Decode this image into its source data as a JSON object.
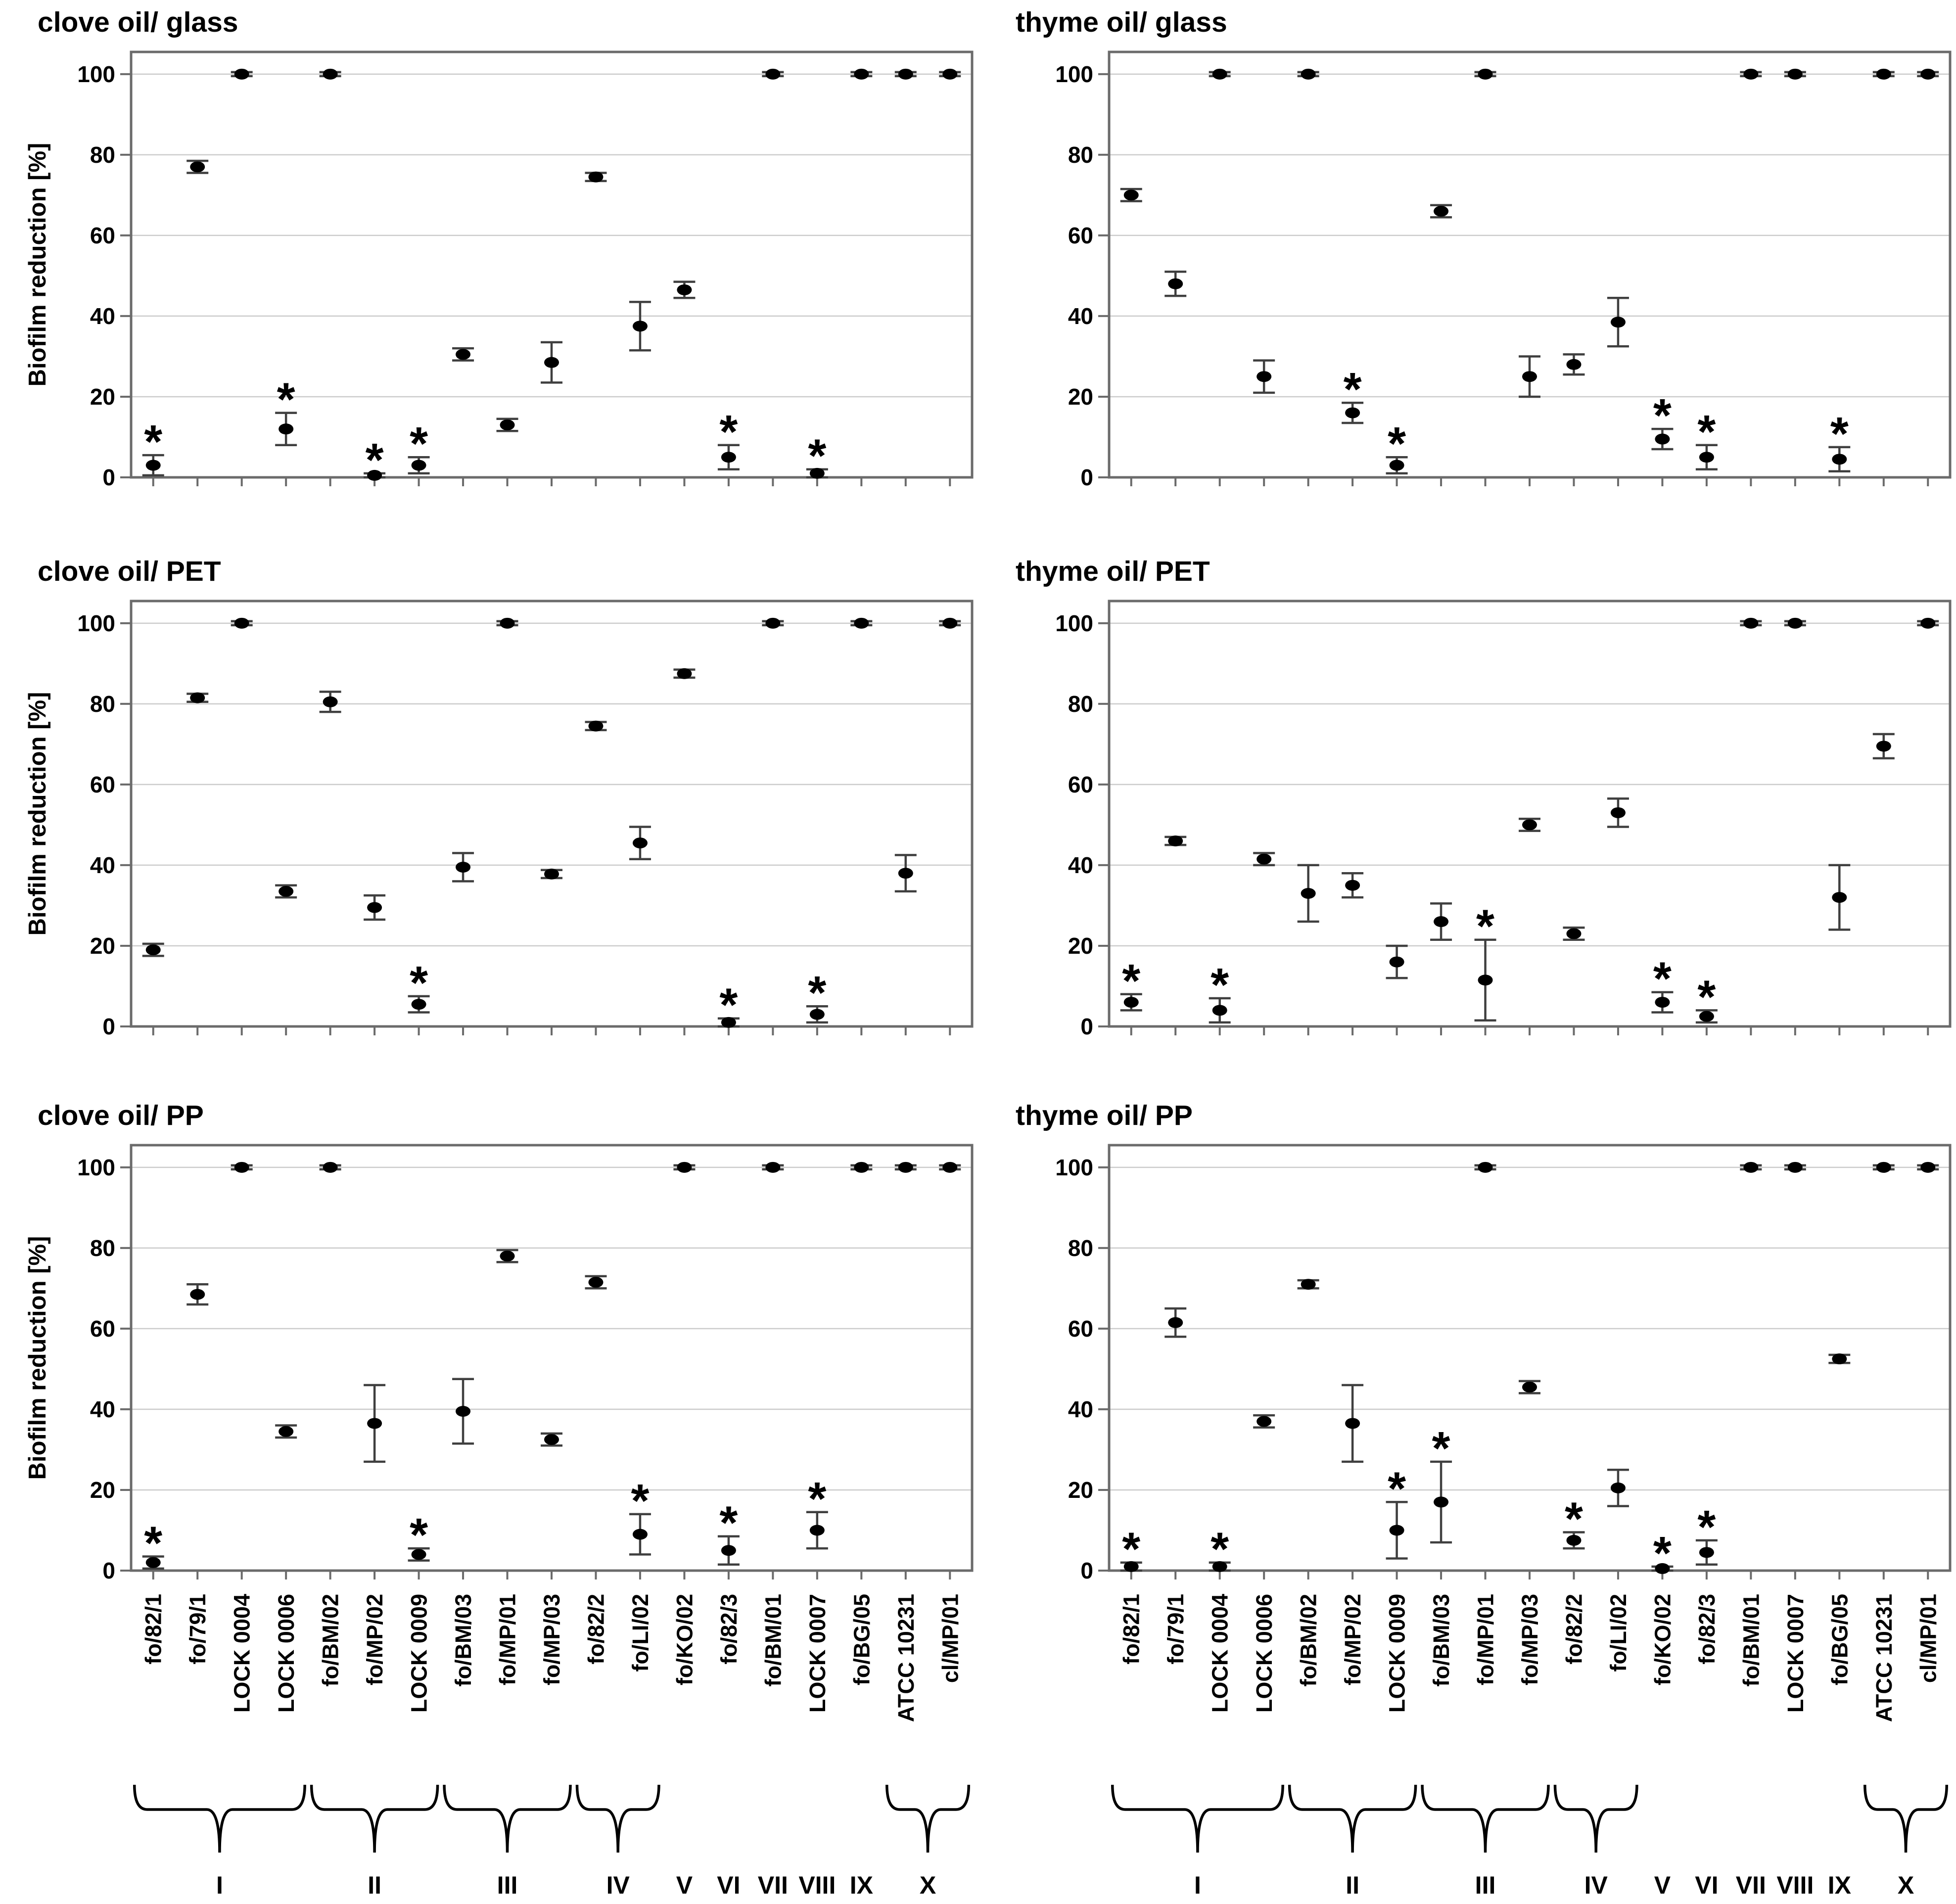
{
  "figure": {
    "description_text_visible": false,
    "panel_grid": {
      "rows": 3,
      "cols": 2
    },
    "colors": {
      "background": "#ffffff",
      "marker": "#000000",
      "error_bar": "#3f3f3f",
      "gridline": "#cccccc",
      "axis_border": "#6b6b6b",
      "text": "#000000"
    }
  },
  "groups": [
    {
      "label": "I",
      "from": 0,
      "to": 3
    },
    {
      "label": "II",
      "from": 4,
      "to": 6
    },
    {
      "label": "III",
      "from": 7,
      "to": 9
    },
    {
      "label": "IV",
      "from": 10,
      "to": 11
    },
    {
      "label": "V",
      "from": 12,
      "to": 12
    },
    {
      "label": "VI",
      "from": 13,
      "to": 13
    },
    {
      "label": "VII",
      "from": 14,
      "to": 14
    },
    {
      "label": "VIII",
      "from": 15,
      "to": 15
    },
    {
      "label": "IX",
      "from": 16,
      "to": 16
    },
    {
      "label": "X",
      "from": 17,
      "to": 18
    }
  ],
  "chart_data": [
    {
      "type": "scatter",
      "title": "clove oil/ glass",
      "ylabel": "Biofilm reduction [%]",
      "ylim": [
        0,
        100
      ],
      "yticks": [
        0,
        20,
        40,
        60,
        80,
        100
      ],
      "grid": true,
      "error_bars": true,
      "significance_marker": "*",
      "categories": [
        "fo/82/1",
        "fo/79/1",
        "LOCK 0004",
        "LOCK 0006",
        "fo/BM/02",
        "fo/MP/02",
        "LOCK 0009",
        "fo/BM/03",
        "fo/MP/01",
        "fo/MP/03",
        "fo/82/2",
        "fo/LI/02",
        "fo/KO/02",
        "fo/82/3",
        "fo/BM/01",
        "LOCK 0007",
        "fo/BG/05",
        "ATCC 10231",
        "cl/MP/01"
      ],
      "values": [
        3,
        77,
        100,
        12,
        100,
        0.5,
        3,
        30.5,
        13,
        28.5,
        74.5,
        37.5,
        46.5,
        5,
        100,
        1,
        100,
        100,
        100
      ],
      "errors": [
        2.5,
        1.5,
        0.5,
        4,
        0.5,
        0.5,
        2,
        1.5,
        1.5,
        5,
        1,
        6,
        2,
        3,
        0.5,
        1,
        0.5,
        0.5,
        0.5
      ],
      "significant": [
        true,
        false,
        false,
        true,
        false,
        true,
        true,
        false,
        false,
        false,
        false,
        false,
        false,
        true,
        false,
        true,
        false,
        false,
        false
      ]
    },
    {
      "type": "scatter",
      "title": "thyme oil/ glass",
      "ylabel": "",
      "ylim": [
        0,
        100
      ],
      "yticks": [
        0,
        20,
        40,
        60,
        80,
        100
      ],
      "grid": true,
      "error_bars": true,
      "significance_marker": "*",
      "categories": [
        "fo/82/1",
        "fo/79/1",
        "LOCK 0004",
        "LOCK 0006",
        "fo/BM/02",
        "fo/MP/02",
        "LOCK 0009",
        "fo/BM/03",
        "fo/MP/01",
        "fo/MP/03",
        "fo/82/2",
        "fo/LI/02",
        "fo/KO/02",
        "fo/82/3",
        "fo/BM/01",
        "LOCK 0007",
        "fo/BG/05",
        "ATCC 10231",
        "cl/MP/01"
      ],
      "values": [
        70,
        48,
        100,
        25,
        100,
        16,
        3,
        66,
        100,
        25,
        28,
        38.5,
        9.5,
        5,
        100,
        100,
        4.5,
        100,
        100
      ],
      "errors": [
        1.5,
        3,
        0.5,
        4,
        0.5,
        2.5,
        2,
        1.5,
        0.5,
        5,
        2.5,
        6,
        2.5,
        3,
        0.5,
        0.5,
        3,
        0.5,
        0.5
      ],
      "significant": [
        false,
        false,
        false,
        false,
        false,
        true,
        true,
        false,
        false,
        false,
        false,
        false,
        true,
        true,
        false,
        false,
        true,
        false,
        false
      ]
    },
    {
      "type": "scatter",
      "title": "clove oil/ PET",
      "ylabel": "Biofilm reduction [%]",
      "ylim": [
        0,
        100
      ],
      "yticks": [
        0,
        20,
        40,
        60,
        80,
        100
      ],
      "grid": true,
      "error_bars": true,
      "significance_marker": "*",
      "categories": [
        "fo/82/1",
        "fo/79/1",
        "LOCK 0004",
        "LOCK 0006",
        "fo/BM/02",
        "fo/MP/02",
        "LOCK 0009",
        "fo/BM/03",
        "fo/MP/01",
        "fo/MP/03",
        "fo/82/2",
        "fo/LI/02",
        "fo/KO/02",
        "fo/82/3",
        "fo/BM/01",
        "LOCK 0007",
        "fo/BG/05",
        "ATCC 10231",
        "cl/MP/01"
      ],
      "values": [
        19,
        81.5,
        100,
        33.5,
        80.5,
        29.5,
        5.5,
        39.5,
        100,
        37.8,
        74.5,
        45.5,
        87.5,
        1,
        100,
        3,
        100,
        38,
        100
      ],
      "errors": [
        1.5,
        1,
        0.5,
        1.5,
        2.5,
        3,
        2,
        3.5,
        0.5,
        1,
        1,
        4,
        1,
        1,
        0.5,
        2,
        0.5,
        4.5,
        0.5
      ],
      "significant": [
        false,
        false,
        false,
        false,
        false,
        false,
        true,
        false,
        false,
        false,
        false,
        false,
        false,
        true,
        false,
        true,
        false,
        false,
        false
      ]
    },
    {
      "type": "scatter",
      "title": "thyme oil/ PET",
      "ylabel": "",
      "ylim": [
        0,
        100
      ],
      "yticks": [
        0,
        20,
        40,
        60,
        80,
        100
      ],
      "grid": true,
      "error_bars": true,
      "significance_marker": "*",
      "categories": [
        "fo/82/1",
        "fo/79/1",
        "LOCK 0004",
        "LOCK 0006",
        "fo/BM/02",
        "fo/MP/02",
        "LOCK 0009",
        "fo/BM/03",
        "fo/MP/01",
        "fo/MP/03",
        "fo/82/2",
        "fo/LI/02",
        "fo/KO/02",
        "fo/82/3",
        "fo/BM/01",
        "LOCK 0007",
        "fo/BG/05",
        "ATCC 10231",
        "cl/MP/01"
      ],
      "values": [
        6,
        46,
        4,
        41.5,
        33,
        35,
        16,
        26,
        11.5,
        50,
        23,
        53,
        6,
        2.5,
        100,
        100,
        32,
        69.5,
        100
      ],
      "errors": [
        2,
        1,
        3,
        1.5,
        7,
        3,
        4,
        4.5,
        10,
        1.5,
        1.5,
        3.5,
        2.5,
        1.5,
        0.5,
        0.5,
        8,
        3,
        0.5
      ],
      "significant": [
        true,
        false,
        true,
        false,
        false,
        false,
        false,
        false,
        true,
        false,
        false,
        false,
        true,
        true,
        false,
        false,
        false,
        false,
        false
      ]
    },
    {
      "type": "scatter",
      "title": "clove oil/ PP",
      "ylabel": "Biofilm reduction [%]",
      "ylim": [
        0,
        100
      ],
      "yticks": [
        0,
        20,
        40,
        60,
        80,
        100
      ],
      "grid": true,
      "error_bars": true,
      "significance_marker": "*",
      "categories": [
        "fo/82/1",
        "fo/79/1",
        "LOCK 0004",
        "LOCK 0006",
        "fo/BM/02",
        "fo/MP/02",
        "LOCK 0009",
        "fo/BM/03",
        "fo/MP/01",
        "fo/MP/03",
        "fo/82/2",
        "fo/LI/02",
        "fo/KO/02",
        "fo/82/3",
        "fo/BM/01",
        "LOCK 0007",
        "fo/BG/05",
        "ATCC 10231",
        "cl/MP/01"
      ],
      "values": [
        2,
        68.5,
        100,
        34.5,
        100,
        36.5,
        4,
        39.5,
        78,
        32.5,
        71.5,
        9,
        100,
        5,
        100,
        10,
        100,
        100,
        100
      ],
      "errors": [
        1.5,
        2.5,
        0.5,
        1.5,
        0.5,
        9.5,
        1.5,
        8,
        1.5,
        1.5,
        1.5,
        5,
        0.5,
        3.5,
        0.5,
        4.5,
        0.5,
        0.5,
        0.5
      ],
      "significant": [
        true,
        false,
        false,
        false,
        false,
        false,
        true,
        false,
        false,
        false,
        false,
        true,
        false,
        true,
        false,
        true,
        false,
        false,
        false
      ]
    },
    {
      "type": "scatter",
      "title": "thyme oil/ PP",
      "ylabel": "",
      "ylim": [
        0,
        100
      ],
      "yticks": [
        0,
        20,
        40,
        60,
        80,
        100
      ],
      "grid": true,
      "error_bars": true,
      "significance_marker": "*",
      "categories": [
        "fo/82/1",
        "fo/79/1",
        "LOCK 0004",
        "LOCK 0006",
        "fo/BM/02",
        "fo/MP/02",
        "LOCK 0009",
        "fo/BM/03",
        "fo/MP/01",
        "fo/MP/03",
        "fo/82/2",
        "fo/LI/02",
        "fo/KO/02",
        "fo/82/3",
        "fo/BM/01",
        "LOCK 0007",
        "fo/BG/05",
        "ATCC 10231",
        "cl/MP/01"
      ],
      "values": [
        1,
        61.5,
        1,
        37,
        71,
        36.5,
        10,
        17,
        100,
        45.5,
        7.5,
        20.5,
        0.5,
        4.5,
        100,
        100,
        52.5,
        100,
        100
      ],
      "errors": [
        1,
        3.5,
        1,
        1.5,
        1,
        9.5,
        7,
        10,
        0.5,
        1.5,
        2,
        4.5,
        0.5,
        3,
        0.5,
        0.5,
        1,
        0.5,
        0.5
      ],
      "significant": [
        true,
        false,
        true,
        false,
        false,
        false,
        true,
        true,
        false,
        false,
        true,
        false,
        true,
        true,
        false,
        false,
        false,
        false,
        false
      ]
    }
  ]
}
